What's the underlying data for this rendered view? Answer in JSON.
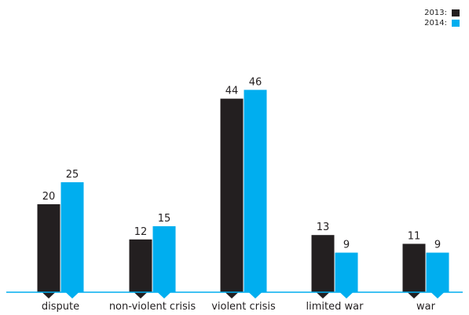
{
  "chart_data": {
    "type": "bar",
    "categories": [
      "dispute",
      "non-violent crisis",
      "violent crisis",
      "limited war",
      "war"
    ],
    "series": [
      {
        "name": "2013:",
        "values": [
          20,
          12,
          44,
          13,
          11
        ],
        "color": "#231f20"
      },
      {
        "name": "2014:",
        "values": [
          25,
          15,
          46,
          9,
          9
        ],
        "color": "#00aeef"
      }
    ],
    "title": "",
    "xlabel": "",
    "ylabel": "",
    "ylim": [
      0,
      50
    ],
    "grid": false,
    "legend_position": "top-right",
    "baseline_color": "#00aeef"
  }
}
